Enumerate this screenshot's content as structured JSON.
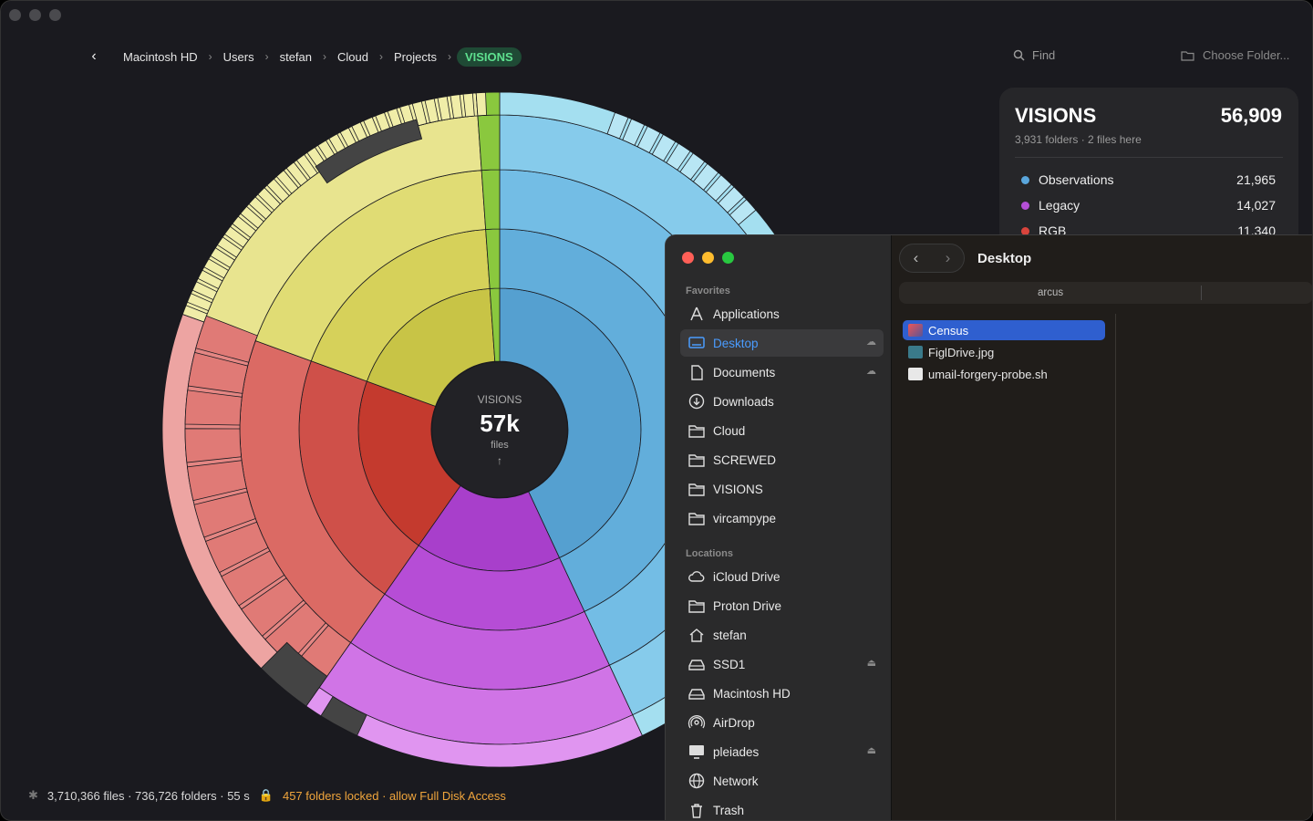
{
  "breadcrumbs": [
    "Macintosh HD",
    "Users",
    "stefan",
    "Cloud",
    "Projects"
  ],
  "breadcrumb_current": "VISIONS",
  "find_label": "Find",
  "choose_folder_label": "Choose Folder...",
  "center": {
    "title": "VISIONS",
    "value": "57k",
    "unit": "files",
    "up": "↑"
  },
  "panel": {
    "title": "VISIONS",
    "total": "56,909",
    "subtitle": "3,931 folders · 2 files here",
    "items": [
      {
        "label": "Observations",
        "value": "21,965",
        "color": "#5aa6dc"
      },
      {
        "label": "Legacy",
        "value": "14,027",
        "color": "#b44fd6"
      },
      {
        "label": "RGB",
        "value": "11,340",
        "color": "#d9443c"
      }
    ]
  },
  "status": {
    "stats": "3,710,366 files · 736,726 folders · 55 s",
    "locked": "457 folders locked · allow Full Disk Access"
  },
  "finder": {
    "title": "Desktop",
    "path": "arcus",
    "favorites_header": "Favorites",
    "locations_header": "Locations",
    "favorites": [
      {
        "label": "Applications",
        "icon": "applications-icon"
      },
      {
        "label": "Desktop",
        "icon": "desktop-icon"
      },
      {
        "label": "Documents",
        "icon": "document-icon"
      },
      {
        "label": "Downloads",
        "icon": "download-icon"
      },
      {
        "label": "Cloud",
        "icon": "folder-icon"
      },
      {
        "label": "SCREWED",
        "icon": "folder-icon"
      },
      {
        "label": "VISIONS",
        "icon": "folder-icon"
      },
      {
        "label": "vircampype",
        "icon": "folder-icon"
      }
    ],
    "locations": [
      {
        "label": "iCloud Drive",
        "icon": "cloud-icon"
      },
      {
        "label": "Proton Drive",
        "icon": "folder-icon"
      },
      {
        "label": "stefan",
        "icon": "home-icon"
      },
      {
        "label": "SSD1",
        "icon": "drive-icon"
      },
      {
        "label": "Macintosh HD",
        "icon": "drive-icon"
      },
      {
        "label": "AirDrop",
        "icon": "airdrop-icon"
      },
      {
        "label": "pleiades",
        "icon": "display-icon"
      },
      {
        "label": "Network",
        "icon": "globe-icon"
      },
      {
        "label": "Trash",
        "icon": "trash-icon"
      }
    ],
    "files": [
      {
        "label": "Census",
        "icon": "app-icon"
      },
      {
        "label": "FiglDrive.jpg",
        "icon": "image-icon"
      },
      {
        "label": "umail-forgery-probe.sh",
        "icon": "script-icon"
      }
    ]
  }
}
